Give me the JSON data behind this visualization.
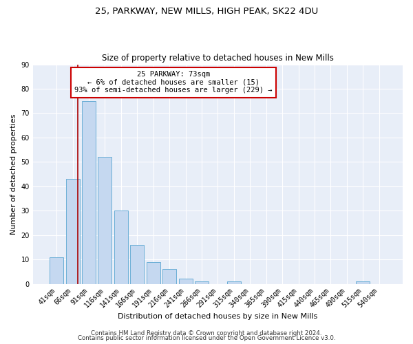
{
  "title1": "25, PARKWAY, NEW MILLS, HIGH PEAK, SK22 4DU",
  "title2": "Size of property relative to detached houses in New Mills",
  "xlabel": "Distribution of detached houses by size in New Mills",
  "ylabel": "Number of detached properties",
  "bar_labels": [
    "41sqm",
    "66sqm",
    "91sqm",
    "116sqm",
    "141sqm",
    "166sqm",
    "191sqm",
    "216sqm",
    "241sqm",
    "266sqm",
    "291sqm",
    "315sqm",
    "340sqm",
    "365sqm",
    "390sqm",
    "415sqm",
    "440sqm",
    "465sqm",
    "490sqm",
    "515sqm",
    "540sqm"
  ],
  "bar_values": [
    11,
    43,
    75,
    52,
    30,
    16,
    9,
    6,
    2,
    1,
    0,
    1,
    0,
    0,
    0,
    0,
    0,
    0,
    0,
    1,
    0
  ],
  "bar_color": "#c5d8f0",
  "bar_edge_color": "#6aaed6",
  "vline_color": "#aa0000",
  "vline_x": 1.32,
  "annotation_text": "25 PARKWAY: 73sqm\n← 6% of detached houses are smaller (15)\n93% of semi-detached houses are larger (229) →",
  "annotation_box_facecolor": "#ffffff",
  "annotation_box_edgecolor": "#cc0000",
  "ylim": [
    0,
    90
  ],
  "yticks": [
    0,
    10,
    20,
    30,
    40,
    50,
    60,
    70,
    80,
    90
  ],
  "footnote1": "Contains HM Land Registry data © Crown copyright and database right 2024.",
  "footnote2": "Contains public sector information licensed under the Open Government Licence v3.0.",
  "bg_color": "#e8eef8",
  "grid_color": "#ffffff",
  "title1_fontsize": 9.5,
  "title2_fontsize": 8.5,
  "xlabel_fontsize": 8,
  "ylabel_fontsize": 8,
  "tick_fontsize": 7,
  "annot_fontsize": 7.5,
  "footnote_fontsize": 6.2
}
